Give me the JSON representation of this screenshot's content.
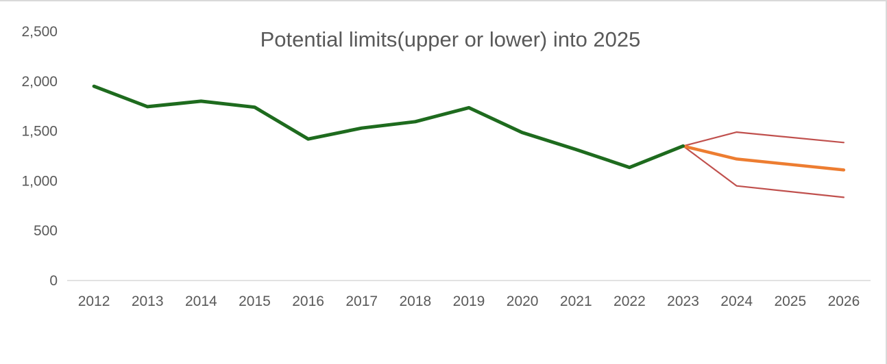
{
  "chart_data": {
    "type": "line",
    "title": "Potential limits(upper or lower) into 2025",
    "xlabel": "",
    "ylabel": "",
    "categories": [
      "2012",
      "2013",
      "2014",
      "2015",
      "2016",
      "2017",
      "2018",
      "2019",
      "2020",
      "2021",
      "2022",
      "2023",
      "2024",
      "2025",
      "2026"
    ],
    "ylim": [
      0,
      2500
    ],
    "yticks": [
      0,
      500,
      1000,
      1500,
      2000,
      2500
    ],
    "ytick_labels": [
      "0",
      "500",
      "1,000",
      "1,500",
      "2,000",
      "2,500"
    ],
    "grid": false,
    "legend": "none",
    "series": [
      {
        "key": "actual",
        "color": "#1e6b1e",
        "values": [
          1950,
          1745,
          1800,
          1740,
          1420,
          1530,
          1595,
          1735,
          1485,
          1315,
          1135,
          1350,
          null,
          null,
          null
        ]
      },
      {
        "key": "forecast",
        "color": "#ed7d31",
        "values": [
          null,
          null,
          null,
          null,
          null,
          null,
          null,
          null,
          null,
          null,
          null,
          1350,
          1220,
          null,
          1110
        ]
      },
      {
        "key": "upper-bound",
        "color": "#c0504d",
        "values": [
          null,
          null,
          null,
          null,
          null,
          null,
          null,
          null,
          null,
          null,
          null,
          1350,
          1490,
          null,
          1385
        ]
      },
      {
        "key": "lower-bound",
        "color": "#c0504d",
        "values": [
          null,
          null,
          null,
          null,
          null,
          null,
          null,
          null,
          null,
          null,
          null,
          1350,
          950,
          null,
          835
        ]
      }
    ]
  }
}
